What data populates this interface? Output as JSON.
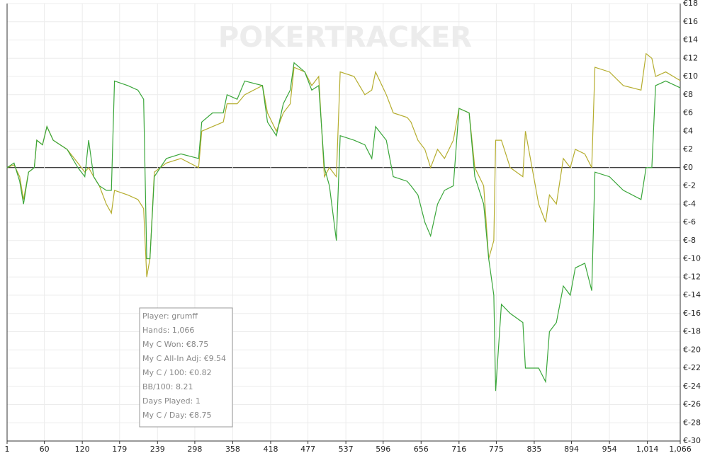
{
  "chart_data": {
    "type": "line",
    "watermark": "POKERTRACKER",
    "annotations": [
      "Player: grumff",
      "Hands: 1,066",
      "My C Won: €8.75",
      "My C All-In Adj: €9.54",
      "My C / 100: €0.82",
      "BB/100: 8.21",
      "Days Played: 1",
      "My C / Day: €8.75"
    ],
    "grid": true,
    "x": [
      1,
      12,
      21,
      27,
      35,
      44,
      48,
      57,
      64,
      74,
      96,
      113,
      124,
      130,
      138,
      147,
      158,
      166,
      171,
      192,
      208,
      217,
      222,
      227,
      234,
      253,
      276,
      304,
      309,
      326,
      343,
      349,
      365,
      377,
      405,
      413,
      427,
      438,
      449,
      455,
      472,
      483,
      494,
      503,
      511,
      522,
      528,
      550,
      567,
      578,
      584,
      601,
      612,
      634,
      640,
      651,
      662,
      671,
      682,
      693,
      707,
      716,
      732,
      741,
      755,
      763,
      771,
      774,
      783,
      797,
      817,
      821,
      842,
      853,
      859,
      870,
      881,
      892,
      900,
      915,
      926,
      931,
      954,
      976,
      1004,
      1012,
      1021,
      1027,
      1043,
      1066
    ],
    "series": [
      {
        "color": "#3aa63a",
        "values": [
          0,
          0.5,
          -1.5,
          -4,
          -0.5,
          0,
          3,
          2.5,
          4.5,
          3,
          2,
          0,
          -1,
          3,
          -1,
          -2,
          -2.5,
          -2.5,
          9.5,
          9,
          8.5,
          7.5,
          -10,
          -10,
          -1,
          1,
          1.5,
          1,
          5,
          6,
          6,
          8,
          7.5,
          9.5,
          9,
          5,
          3.5,
          7,
          8.5,
          11.5,
          10.5,
          8.5,
          9,
          0,
          -2,
          -8,
          3.5,
          3,
          2.5,
          1,
          4.5,
          3,
          -1,
          -1.5,
          -2,
          -3,
          -6,
          -7.5,
          -4,
          -2.5,
          -2,
          6.5,
          6,
          -1,
          -4,
          -10,
          -14,
          -24.5,
          -15,
          -16,
          -17,
          -22,
          -22,
          -23.5,
          -18,
          -17,
          -13,
          -14,
          -11,
          -10.5,
          -13.5,
          -0.5,
          -1,
          -2.5,
          -3.5,
          0,
          0,
          9,
          9.5,
          8.75
        ]
      },
      {
        "color": "#b5ad2e",
        "values": [
          0,
          0.3,
          -1,
          -3.5,
          -0.5,
          0,
          3,
          2.5,
          4.5,
          3,
          2,
          0.5,
          -0.5,
          0,
          -1,
          -2,
          -4,
          -5,
          -2.5,
          -3,
          -3.5,
          -4.5,
          -12,
          -10,
          -0.5,
          0.5,
          1,
          0,
          4,
          4.5,
          5,
          7,
          7,
          8,
          9,
          6,
          4,
          6,
          7,
          11,
          10.5,
          9,
          10,
          -1,
          0,
          -1,
          10.5,
          10,
          8,
          8.5,
          10.5,
          8,
          6,
          5.5,
          5,
          3,
          2,
          0,
          2,
          1,
          3,
          6.5,
          6,
          0,
          -2,
          -10,
          -8,
          3,
          3,
          0,
          -1,
          4,
          -4,
          -6,
          -3,
          -4,
          1,
          0,
          2,
          1.5,
          0,
          11,
          10.5,
          9,
          8.5,
          12.5,
          12,
          10,
          10.5,
          9.54
        ]
      }
    ],
    "xlim": [
      1,
      1066
    ],
    "xticks": [
      1,
      60,
      120,
      179,
      239,
      298,
      358,
      418,
      477,
      537,
      596,
      656,
      716,
      775,
      835,
      894,
      954,
      {
        "value": 1014,
        "label": "1,014"
      },
      {
        "value": 1066,
        "label": "1,066"
      }
    ],
    "ylim": [
      -30,
      18
    ],
    "yticks": [
      {
        "value": 18,
        "label": "€18"
      },
      {
        "value": 16,
        "label": "€16"
      },
      {
        "value": 14,
        "label": "€14"
      },
      {
        "value": 12,
        "label": "€12"
      },
      {
        "value": 10,
        "label": "€10"
      },
      {
        "value": 8,
        "label": "€8"
      },
      {
        "value": 6,
        "label": "€6"
      },
      {
        "value": 4,
        "label": "€4"
      },
      {
        "value": 2,
        "label": "€2"
      },
      {
        "value": 0,
        "label": "€0"
      },
      {
        "value": -2,
        "label": "€-2"
      },
      {
        "value": -4,
        "label": "€-4"
      },
      {
        "value": -6,
        "label": "€-6"
      },
      {
        "value": -8,
        "label": "€-8"
      },
      {
        "value": -10,
        "label": "€-10"
      },
      {
        "value": -12,
        "label": "€-12"
      },
      {
        "value": -14,
        "label": "€-14"
      },
      {
        "value": -16,
        "label": "€-16"
      },
      {
        "value": -18,
        "label": "€-18"
      },
      {
        "value": -20,
        "label": "€-20"
      },
      {
        "value": -22,
        "label": "€-22"
      },
      {
        "value": -24,
        "label": "€-24"
      },
      {
        "value": -26,
        "label": "€-26"
      },
      {
        "value": -28,
        "label": "€-28"
      },
      {
        "value": -30,
        "label": "€-30"
      }
    ]
  }
}
